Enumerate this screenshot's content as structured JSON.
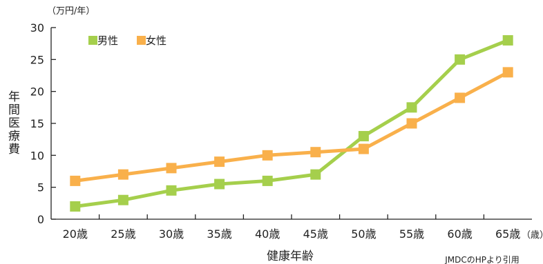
{
  "chart_data": {
    "type": "line",
    "categories": [
      "20歳",
      "25歳",
      "30歳",
      "35歳",
      "40歳",
      "45歳",
      "50歳",
      "55歳",
      "60歳",
      "65歳"
    ],
    "series": [
      {
        "name": "男性",
        "color": "#a5cf4c",
        "values": [
          2,
          3,
          4.5,
          5.5,
          6,
          7,
          13,
          17.5,
          25,
          28
        ]
      },
      {
        "name": "女性",
        "color": "#f9b04b",
        "values": [
          6,
          7,
          8,
          9,
          10,
          10.5,
          11,
          15,
          19,
          23
        ]
      }
    ],
    "ylim": [
      0,
      30
    ],
    "yticks": [
      0,
      5,
      10,
      15,
      20,
      25,
      30
    ],
    "y_unit": "（万円/年）",
    "x_unit": "（歳）",
    "ylabel": "年間医療費",
    "xlabel": "健康年齢",
    "legend_position": "top-left",
    "grid": false,
    "source": "JMDCのHPより引用"
  }
}
